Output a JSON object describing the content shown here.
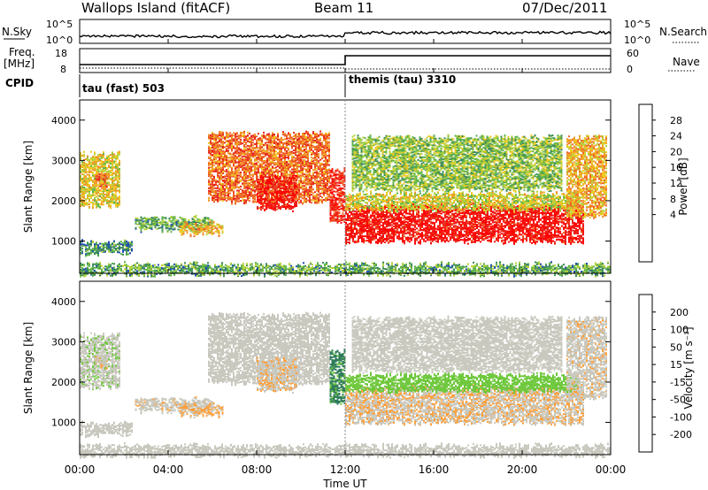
{
  "header": {
    "title": "Wallops Island (fitACF)",
    "beam": "Beam 11",
    "date": "07/Dec/2011"
  },
  "noise_panel": {
    "left_label": "N.Sky",
    "right_label": "N.Search",
    "left_ticks": [
      "10^5",
      "10^0"
    ],
    "right_ticks": [
      "10^5",
      "10^0"
    ]
  },
  "freq_panel": {
    "left_label_top": "Freq.",
    "left_label_bottom": "[MHz]",
    "right_label": "Nave",
    "left_ticks": [
      "18",
      "8"
    ],
    "right_ticks": [
      "60",
      "0"
    ]
  },
  "cpid_panel": {
    "label": "CPID",
    "modes": [
      {
        "name": "tau (fast) 503",
        "start_hour": 0
      },
      {
        "name": "themis (tau) 3310",
        "start_hour": 12
      }
    ]
  },
  "power_panel": {
    "ylabel": "Slant Range [km]",
    "yticks": [
      "4000",
      "3000",
      "2000",
      "1000"
    ],
    "colorbar_label": "Power [dB]",
    "colorbar_ticks": [
      "28",
      "24",
      "20",
      "16",
      "12",
      "8",
      "4"
    ]
  },
  "velocity_panel": {
    "ylabel": "Slant Range [km]",
    "yticks": [
      "4000",
      "3000",
      "2000",
      "1000"
    ],
    "colorbar_label": "Velocity [m s⁻¹]",
    "colorbar_ticks": [
      "200",
      "100",
      "50",
      "15",
      "-15",
      "-50",
      "-100",
      "-200"
    ]
  },
  "xaxis": {
    "label": "Time UT",
    "ticks": [
      "00:00",
      "04:00",
      "08:00",
      "12:00",
      "16:00",
      "20:00",
      "00:00"
    ]
  },
  "colors": {
    "power": [
      "#0000ff",
      "#2050b0",
      "#3c8a5a",
      "#5fb44a",
      "#b4d23c",
      "#f0c81e",
      "#f09628",
      "#f06428",
      "#e6281e",
      "#ff0000"
    ],
    "velocity": [
      "#0000c8",
      "#1e46b4",
      "#2d7a5a",
      "#6ec83c",
      "#c8c8be",
      "#ffa03c",
      "#f06e14",
      "#f03214",
      "#e60000"
    ]
  },
  "chart_data": {
    "type": "heatmap",
    "x_unit": "hours UT",
    "xlim": [
      0,
      24
    ],
    "ylim": [
      200,
      4500
    ],
    "y_unit": "km",
    "power_range_db": [
      0,
      30
    ],
    "velocity_range": [
      -200,
      200
    ],
    "cpid_change_hour": 12,
    "scatter_regions": [
      {
        "t0": 0.0,
        "t1": 1.8,
        "r0": 1900,
        "r1": 3200,
        "power_db": 16,
        "velocity": 5
      },
      {
        "t0": 0.7,
        "t1": 1.2,
        "r0": 2400,
        "r1": 2700,
        "power_db": 22,
        "velocity": -10
      },
      {
        "t0": 0.0,
        "t1": 2.4,
        "r0": 700,
        "r1": 1000,
        "power_db": 8,
        "velocity": 0
      },
      {
        "t0": 2.5,
        "t1": 6.0,
        "r0": 1300,
        "r1": 1600,
        "power_db": 10,
        "velocity": -5
      },
      {
        "t0": 4.5,
        "t1": 6.5,
        "r0": 1200,
        "r1": 1450,
        "power_db": 18,
        "velocity": -20
      },
      {
        "t0": 5.8,
        "t1": 11.3,
        "r0": 2000,
        "r1": 3700,
        "power_db": 22,
        "velocity": 0
      },
      {
        "t0": 8.0,
        "t1": 9.8,
        "r0": 1800,
        "r1": 2600,
        "power_db": 27,
        "velocity": -10
      },
      {
        "t0": 11.3,
        "t1": 12.0,
        "r0": 1500,
        "r1": 2800,
        "power_db": 26,
        "velocity": 60
      },
      {
        "t0": 12.0,
        "t1": 22.8,
        "r0": 1000,
        "r1": 1900,
        "power_db": 28,
        "velocity": -10
      },
      {
        "t0": 12.0,
        "t1": 22.5,
        "r0": 1800,
        "r1": 2200,
        "power_db": 15,
        "velocity": 30
      },
      {
        "t0": 12.3,
        "t1": 21.8,
        "r0": 2300,
        "r1": 3600,
        "power_db": 12,
        "velocity": 0
      },
      {
        "t0": 22.0,
        "t1": 23.8,
        "r0": 1600,
        "r1": 3600,
        "power_db": 18,
        "velocity": -5
      },
      {
        "t0": 0.0,
        "t1": 24.0,
        "r0": 200,
        "r1": 450,
        "power_db": 10,
        "velocity": 0
      }
    ]
  }
}
